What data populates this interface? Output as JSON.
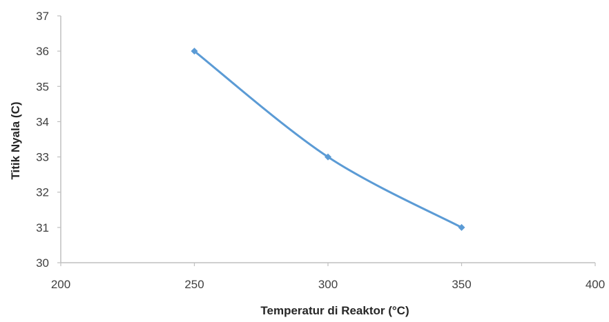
{
  "chart_data": {
    "type": "line",
    "title": "",
    "xlabel": "Temperatur di Reaktor (°C)",
    "ylabel": "Titik Nyala (C)",
    "xlim": [
      200,
      400
    ],
    "ylim": [
      30,
      37
    ],
    "x_ticks": [
      "200",
      "250",
      "300",
      "350",
      "400"
    ],
    "y_ticks": [
      "30",
      "31",
      "32",
      "33",
      "34",
      "35",
      "36",
      "37"
    ],
    "grid": false,
    "legend": "none",
    "smoothed": true,
    "marker": "diamond",
    "series": [
      {
        "color": "#5B9BD5",
        "x": [
          250,
          300,
          350
        ],
        "y": [
          36,
          33,
          31
        ]
      }
    ]
  }
}
